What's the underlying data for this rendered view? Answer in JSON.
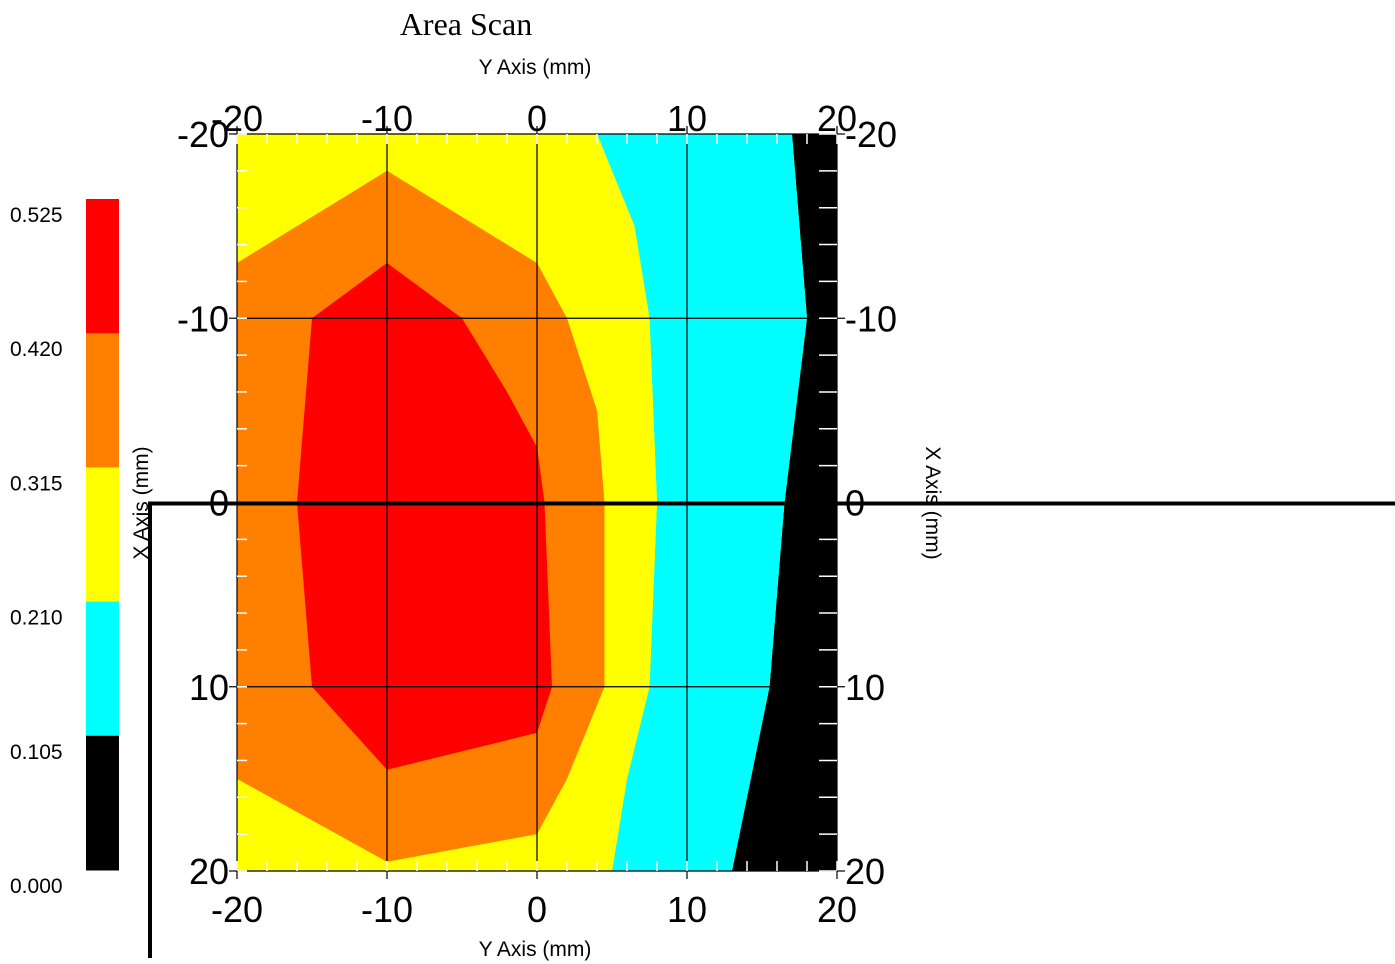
{
  "chart_data": {
    "type": "contour",
    "title": "Area Scan",
    "xlabel": "Y Axis (mm)",
    "ylabel": "X Axis (mm)",
    "x_ticks": [
      "-20",
      "-10",
      "0",
      "10",
      "20"
    ],
    "y_ticks": [
      "-20",
      "-10",
      "0",
      "10",
      "20"
    ],
    "xlim": [
      -20,
      20
    ],
    "ylim": [
      -20,
      20
    ],
    "grid": true,
    "legend_position": "left",
    "color_scale": {
      "levels": [
        "0.525",
        "0.420",
        "0.315",
        "0.210",
        "0.105",
        "0.000"
      ],
      "colors": [
        "#ff0000",
        "#ff7f00",
        "#ffff00",
        "#00ffff",
        "#000000"
      ]
    },
    "regions": [
      {
        "name": "0.000-0.105",
        "color": "#000000",
        "points": [
          [
            17,
            -20
          ],
          [
            20,
            -20
          ],
          [
            20,
            20
          ],
          [
            13,
            20
          ],
          [
            15.5,
            10
          ],
          [
            16.5,
            0
          ],
          [
            18,
            -10
          ]
        ]
      },
      {
        "name": "0.105-0.210",
        "color": "#00ffff",
        "points": [
          [
            4,
            -20
          ],
          [
            17,
            -20
          ],
          [
            18,
            -10
          ],
          [
            16.5,
            0
          ],
          [
            15.5,
            10
          ],
          [
            13,
            20
          ],
          [
            5,
            20
          ],
          [
            6,
            15
          ],
          [
            7.5,
            10
          ],
          [
            8,
            0
          ],
          [
            7.5,
            -10
          ],
          [
            6.5,
            -15
          ]
        ]
      },
      {
        "name": "0.210-0.315",
        "color": "#ffff00",
        "points": [
          [
            -20,
            -20
          ],
          [
            4,
            -20
          ],
          [
            6.5,
            -15
          ],
          [
            7.5,
            -10
          ],
          [
            8,
            0
          ],
          [
            7.5,
            10
          ],
          [
            6,
            15
          ],
          [
            5,
            20
          ],
          [
            -20,
            20
          ]
        ]
      },
      {
        "name": "0.315-0.420",
        "color": "#ff7f00",
        "points": [
          [
            -10,
            -18
          ],
          [
            0,
            -13
          ],
          [
            2,
            -10
          ],
          [
            4,
            -5
          ],
          [
            4.5,
            0
          ],
          [
            4.5,
            10
          ],
          [
            2,
            15
          ],
          [
            0,
            18
          ],
          [
            -10,
            19.5
          ],
          [
            -20,
            15
          ],
          [
            -20,
            -13
          ]
        ]
      },
      {
        "name": "0.420-0.525",
        "color": "#ff0000",
        "points": [
          [
            -10,
            -13
          ],
          [
            -5,
            -10
          ],
          [
            -2,
            -6
          ],
          [
            0,
            -3
          ],
          [
            0.5,
            0
          ],
          [
            1,
            10
          ],
          [
            0,
            12.5
          ],
          [
            -10,
            14.5
          ],
          [
            -15,
            10
          ],
          [
            -16,
            0
          ],
          [
            -15,
            -10
          ]
        ]
      }
    ],
    "sweep_value": 0
  }
}
